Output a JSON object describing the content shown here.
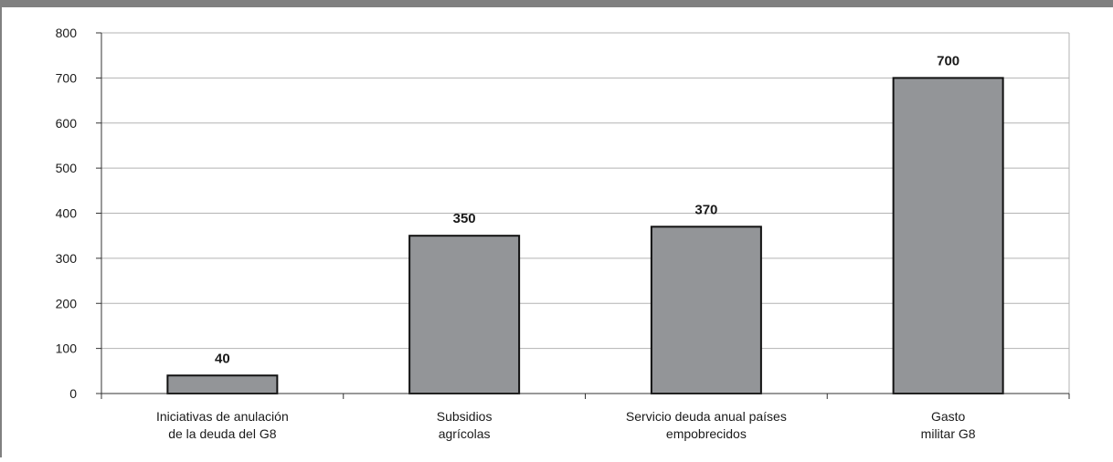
{
  "chart_data": {
    "type": "bar",
    "title": "",
    "xlabel": "",
    "ylabel": "",
    "categories": [
      [
        "Iniciativas de anulación",
        "de la deuda del G8"
      ],
      [
        "Subsidios",
        "agrícolas"
      ],
      [
        "Servicio deuda anual países",
        "empobrecidos"
      ],
      [
        "Gasto",
        "militar G8"
      ]
    ],
    "values": [
      40,
      350,
      370,
      700
    ],
    "data_labels": [
      "40",
      "350",
      "370",
      "700"
    ],
    "ylim": [
      0,
      800
    ],
    "yticks": [
      0,
      100,
      200,
      300,
      400,
      500,
      600,
      700,
      800
    ],
    "grid": true,
    "legend": "none",
    "colors": {
      "bar_fill": "#939598",
      "bar_stroke": "#111111",
      "grid": "#b3b3b3",
      "header_band": "#808080",
      "frame": "#808080",
      "axis": "#333333"
    }
  }
}
